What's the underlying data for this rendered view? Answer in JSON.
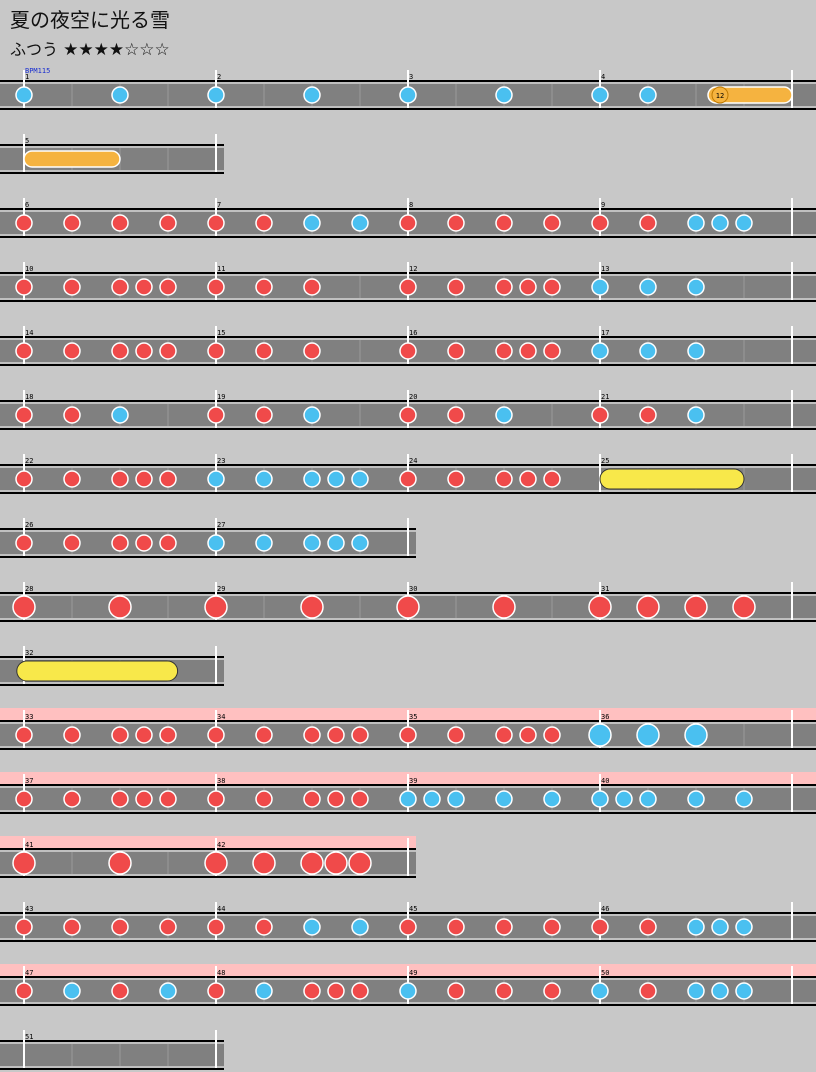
{
  "song": {
    "title": "夏の夜空に光る雪",
    "difficulty_label": "ふつう",
    "stars": "★★★★☆☆☆",
    "bpm_label": "BPM115"
  },
  "colors": {
    "background": "#c8c8c8",
    "lane": "#808080",
    "gogo": "#ffc0c0",
    "don": "#f04a4a",
    "ka": "#4ac0f0",
    "drumroll": "#f5b340",
    "balloon": "#f8e84a"
  },
  "rows": [
    {
      "measures": [
        1,
        2,
        3,
        4
      ],
      "notes": [
        [
          0,
          "k"
        ],
        [
          2,
          "k"
        ],
        [
          4,
          "k"
        ],
        [
          6,
          "k"
        ],
        [
          8,
          "k"
        ],
        [
          10,
          "k"
        ],
        [
          12,
          "k"
        ],
        [
          13,
          "k"
        ]
      ],
      "drumroll": [
        [
          14.25,
          16
        ]
      ],
      "balloon_count": {
        "pos": 14.5,
        "text": "12"
      },
      "bpm": true
    },
    {
      "measures": [
        5
      ],
      "notes": [],
      "drumroll": [
        [
          0,
          2
        ]
      ],
      "end": 4
    },
    {
      "measures": [
        6,
        7,
        8,
        9
      ],
      "notes": [
        [
          0,
          "d"
        ],
        [
          1,
          "d"
        ],
        [
          2,
          "d"
        ],
        [
          3,
          "d"
        ],
        [
          4,
          "d"
        ],
        [
          5,
          "d"
        ],
        [
          6,
          "k"
        ],
        [
          7,
          "k"
        ],
        [
          8,
          "d"
        ],
        [
          9,
          "d"
        ],
        [
          10,
          "d"
        ],
        [
          11,
          "d"
        ],
        [
          12,
          "d"
        ],
        [
          13,
          "d"
        ],
        [
          14,
          "k"
        ],
        [
          14.5,
          "k"
        ],
        [
          15,
          "k"
        ]
      ]
    },
    {
      "measures": [
        10,
        11,
        12,
        13
      ],
      "notes": [
        [
          0,
          "d"
        ],
        [
          1,
          "d"
        ],
        [
          2,
          "d"
        ],
        [
          2.5,
          "d"
        ],
        [
          3,
          "d"
        ],
        [
          4,
          "d"
        ],
        [
          5,
          "d"
        ],
        [
          6,
          "d"
        ],
        [
          8,
          "d"
        ],
        [
          9,
          "d"
        ],
        [
          10,
          "d"
        ],
        [
          10.5,
          "d"
        ],
        [
          11,
          "d"
        ],
        [
          12,
          "k"
        ],
        [
          13,
          "k"
        ],
        [
          14,
          "k"
        ]
      ]
    },
    {
      "measures": [
        14,
        15,
        16,
        17
      ],
      "notes": [
        [
          0,
          "d"
        ],
        [
          1,
          "d"
        ],
        [
          2,
          "d"
        ],
        [
          2.5,
          "d"
        ],
        [
          3,
          "d"
        ],
        [
          4,
          "d"
        ],
        [
          5,
          "d"
        ],
        [
          6,
          "d"
        ],
        [
          8,
          "d"
        ],
        [
          9,
          "d"
        ],
        [
          10,
          "d"
        ],
        [
          10.5,
          "d"
        ],
        [
          11,
          "d"
        ],
        [
          12,
          "k"
        ],
        [
          13,
          "k"
        ],
        [
          14,
          "k"
        ]
      ]
    },
    {
      "measures": [
        18,
        19,
        20,
        21
      ],
      "notes": [
        [
          0,
          "d"
        ],
        [
          1,
          "d"
        ],
        [
          2,
          "k"
        ],
        [
          4,
          "d"
        ],
        [
          5,
          "d"
        ],
        [
          6,
          "k"
        ],
        [
          8,
          "d"
        ],
        [
          9,
          "d"
        ],
        [
          10,
          "k"
        ],
        [
          12,
          "d"
        ],
        [
          13,
          "d"
        ],
        [
          14,
          "k"
        ]
      ]
    },
    {
      "measures": [
        22,
        23,
        24,
        25
      ],
      "notes": [
        [
          0,
          "d"
        ],
        [
          1,
          "d"
        ],
        [
          2,
          "d"
        ],
        [
          2.5,
          "d"
        ],
        [
          3,
          "d"
        ],
        [
          4,
          "k"
        ],
        [
          5,
          "k"
        ],
        [
          6,
          "k"
        ],
        [
          6.5,
          "k"
        ],
        [
          7,
          "k"
        ],
        [
          8,
          "d"
        ],
        [
          9,
          "d"
        ],
        [
          10,
          "d"
        ],
        [
          10.5,
          "d"
        ],
        [
          11,
          "d"
        ]
      ],
      "balloon": [
        [
          12,
          15
        ]
      ]
    },
    {
      "measures": [
        26,
        27
      ],
      "notes": [
        [
          0,
          "d"
        ],
        [
          1,
          "d"
        ],
        [
          2,
          "d"
        ],
        [
          2.5,
          "d"
        ],
        [
          3,
          "d"
        ],
        [
          4,
          "k"
        ],
        [
          5,
          "k"
        ],
        [
          6,
          "k"
        ],
        [
          6.5,
          "k"
        ],
        [
          7,
          "k"
        ]
      ],
      "end": 8
    },
    {
      "measures": [
        28,
        29,
        30,
        31
      ],
      "notes": [
        [
          0,
          "D"
        ],
        [
          2,
          "D"
        ],
        [
          4,
          "D"
        ],
        [
          6,
          "D"
        ],
        [
          8,
          "D"
        ],
        [
          10,
          "D"
        ],
        [
          12,
          "D"
        ],
        [
          13,
          "D"
        ],
        [
          14,
          "D"
        ],
        [
          15,
          "D"
        ]
      ]
    },
    {
      "measures": [
        32
      ],
      "notes": [],
      "balloon": [
        [
          -0.15,
          3.2
        ]
      ],
      "end": 4
    },
    {
      "measures": [
        33,
        34,
        35,
        36
      ],
      "gogo": true,
      "notes": [
        [
          0,
          "d"
        ],
        [
          1,
          "d"
        ],
        [
          2,
          "d"
        ],
        [
          2.5,
          "d"
        ],
        [
          3,
          "d"
        ],
        [
          4,
          "d"
        ],
        [
          5,
          "d"
        ],
        [
          6,
          "d"
        ],
        [
          6.5,
          "d"
        ],
        [
          7,
          "d"
        ],
        [
          8,
          "d"
        ],
        [
          9,
          "d"
        ],
        [
          10,
          "d"
        ],
        [
          10.5,
          "d"
        ],
        [
          11,
          "d"
        ],
        [
          12,
          "K"
        ],
        [
          13,
          "K"
        ],
        [
          14,
          "K"
        ]
      ]
    },
    {
      "measures": [
        37,
        38,
        39,
        40
      ],
      "gogo": true,
      "notes": [
        [
          0,
          "d"
        ],
        [
          1,
          "d"
        ],
        [
          2,
          "d"
        ],
        [
          2.5,
          "d"
        ],
        [
          3,
          "d"
        ],
        [
          4,
          "d"
        ],
        [
          5,
          "d"
        ],
        [
          6,
          "d"
        ],
        [
          6.5,
          "d"
        ],
        [
          7,
          "d"
        ],
        [
          8,
          "k"
        ],
        [
          8.5,
          "k"
        ],
        [
          9,
          "k"
        ],
        [
          10,
          "k"
        ],
        [
          11,
          "k"
        ],
        [
          12,
          "k"
        ],
        [
          12.5,
          "k"
        ],
        [
          13,
          "k"
        ],
        [
          14,
          "k"
        ],
        [
          15,
          "k"
        ]
      ]
    },
    {
      "measures": [
        41,
        42
      ],
      "gogo": true,
      "notes": [
        [
          0,
          "D"
        ],
        [
          2,
          "D"
        ],
        [
          4,
          "D"
        ],
        [
          5,
          "D"
        ],
        [
          6,
          "D"
        ],
        [
          6.5,
          "D"
        ],
        [
          7,
          "D"
        ]
      ],
      "end": 8
    },
    {
      "measures": [
        43,
        44,
        45,
        46
      ],
      "notes": [
        [
          0,
          "d"
        ],
        [
          1,
          "d"
        ],
        [
          2,
          "d"
        ],
        [
          3,
          "d"
        ],
        [
          4,
          "d"
        ],
        [
          5,
          "d"
        ],
        [
          6,
          "k"
        ],
        [
          7,
          "k"
        ],
        [
          8,
          "d"
        ],
        [
          9,
          "d"
        ],
        [
          10,
          "d"
        ],
        [
          11,
          "d"
        ],
        [
          12,
          "d"
        ],
        [
          13,
          "d"
        ],
        [
          14,
          "k"
        ],
        [
          14.5,
          "k"
        ],
        [
          15,
          "k"
        ]
      ]
    },
    {
      "measures": [
        47,
        48,
        49,
        50
      ],
      "gogo": true,
      "notes": [
        [
          0,
          "d"
        ],
        [
          1,
          "k"
        ],
        [
          2,
          "d"
        ],
        [
          3,
          "k"
        ],
        [
          4,
          "d"
        ],
        [
          5,
          "k"
        ],
        [
          6,
          "d"
        ],
        [
          6.5,
          "d"
        ],
        [
          7,
          "d"
        ],
        [
          8,
          "k"
        ],
        [
          9,
          "d"
        ],
        [
          10,
          "d"
        ],
        [
          11,
          "d"
        ],
        [
          12,
          "k"
        ],
        [
          13,
          "d"
        ],
        [
          14,
          "k"
        ],
        [
          14.5,
          "k"
        ],
        [
          15,
          "k"
        ]
      ]
    },
    {
      "measures": [
        51
      ],
      "notes": [],
      "end": 4
    }
  ]
}
